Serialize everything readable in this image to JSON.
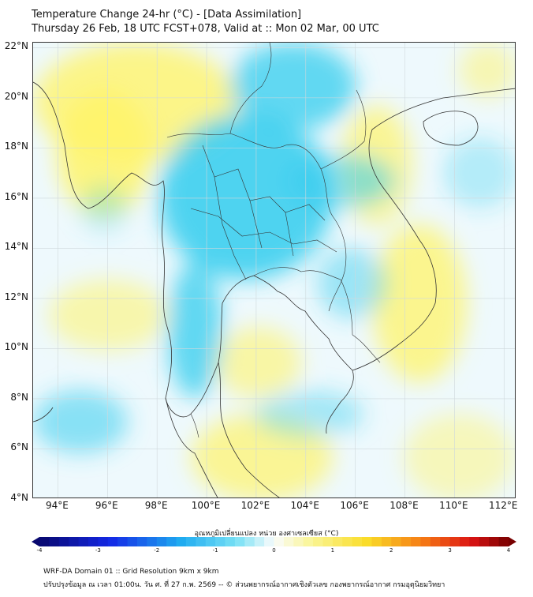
{
  "title_line1": "Temperature Change 24-hr (°C) - [Data Assimilation]",
  "title_line2": "Thursday 26 Feb, 18 UTC FCST+078, Valid at :: Mon 02 Mar, 00 UTC",
  "map": {
    "lon_range": [
      93,
      112.5
    ],
    "lat_range": [
      4,
      22.2
    ],
    "lat_ticks": [
      {
        "value": 22,
        "label": "22°N"
      },
      {
        "value": 20,
        "label": "20°N"
      },
      {
        "value": 18,
        "label": "18°N"
      },
      {
        "value": 16,
        "label": "16°N"
      },
      {
        "value": 14,
        "label": "14°N"
      },
      {
        "value": 12,
        "label": "12°N"
      },
      {
        "value": 10,
        "label": "10°N"
      },
      {
        "value": 8,
        "label": "8°N"
      },
      {
        "value": 6,
        "label": "6°N"
      },
      {
        "value": 4,
        "label": "4°N"
      }
    ],
    "lon_ticks": [
      {
        "value": 94,
        "label": "94°E"
      },
      {
        "value": 96,
        "label": "96°E"
      },
      {
        "value": 98,
        "label": "98°E"
      },
      {
        "value": 100,
        "label": "100°E"
      },
      {
        "value": 102,
        "label": "102°E"
      },
      {
        "value": 104,
        "label": "104°E"
      },
      {
        "value": 106,
        "label": "106°E"
      },
      {
        "value": 108,
        "label": "108°E"
      },
      {
        "value": 110,
        "label": "110°E"
      },
      {
        "value": 112,
        "label": "112°E"
      }
    ],
    "field_colors": {
      "warm": "#fff46a",
      "cool": "#33ccee",
      "neutral": "#eef9fd"
    }
  },
  "colorbar": {
    "title": "อุณหภูมิเปลี่ยนแปลง หน่วย องศาเซลเซียส (°C)",
    "min": -4,
    "max": 4,
    "ticks": [
      "-4",
      "-3",
      "-2",
      "-1",
      "0",
      "1",
      "2",
      "3",
      "4"
    ]
  },
  "footer": {
    "line1": "WRF-DA Domain 01 :: Grid Resolution 9km x 9km",
    "line2": "ปรับปรุงข้อมูล ณ เวลา 01:00น. วัน ศ. ที่ 27 ก.พ. 2569 -- © ส่วนพยากรณ์อากาศเชิงตัวเลข กองพยากรณ์อากาศ กรมอุตุนิยมวิทยา"
  }
}
